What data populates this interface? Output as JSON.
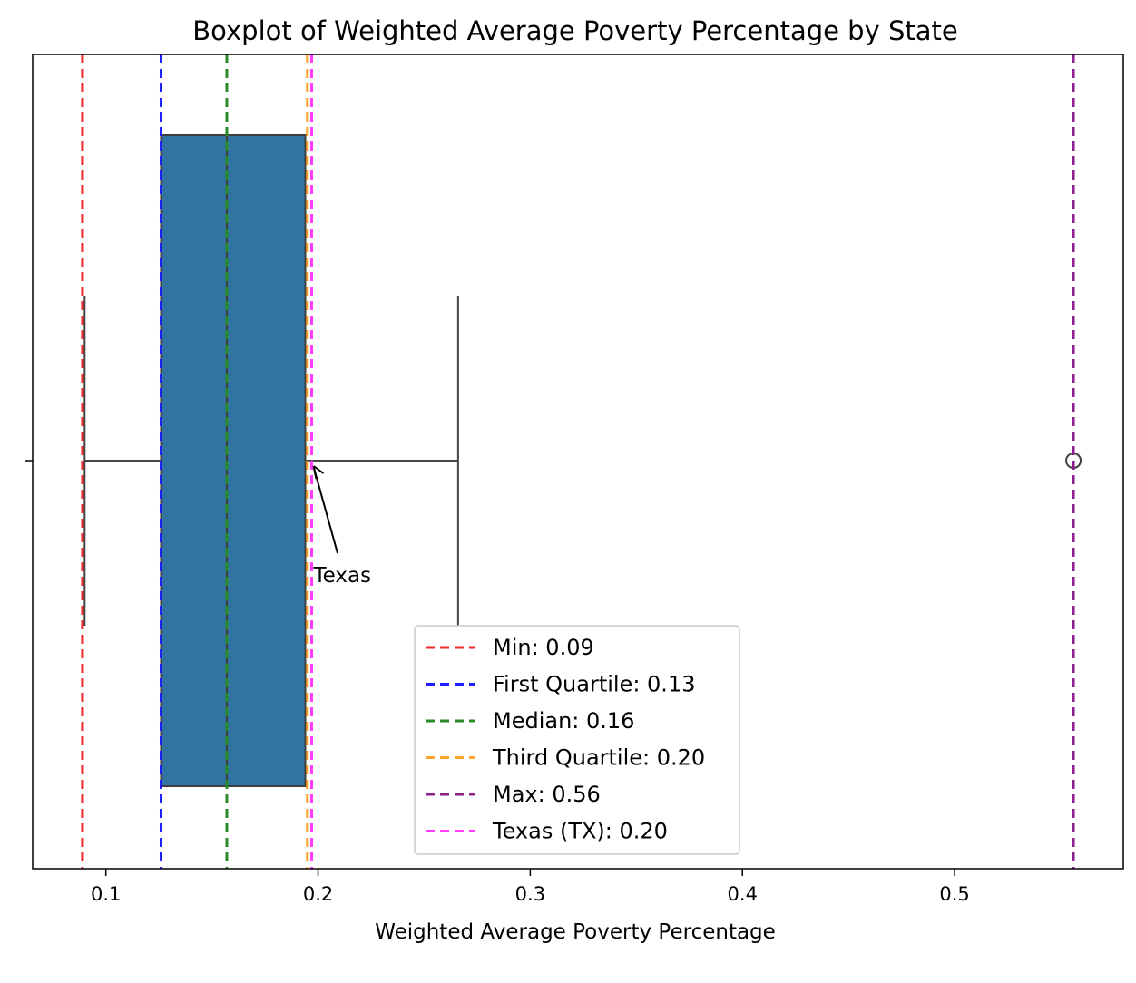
{
  "chart_data": {
    "type": "boxplot",
    "title": "Boxplot of Weighted Average Poverty Percentage by State",
    "xlabel": "Weighted Average Poverty Percentage",
    "ylabel": "",
    "xlim": [
      0.0655,
      0.5795
    ],
    "xticks": [
      0.1,
      0.2,
      0.3,
      0.4,
      0.5
    ],
    "xtick_labels": [
      "0.1",
      "0.2",
      "0.3",
      "0.4",
      "0.5"
    ],
    "grid": false,
    "box": {
      "whisker_low": 0.09,
      "q1": 0.126,
      "median": 0.157,
      "q3": 0.194,
      "whisker_high": 0.266,
      "outliers": [
        0.556
      ],
      "color": "#3274a1"
    },
    "reference_lines": [
      {
        "label": "Min: 0.09",
        "value": 0.089,
        "color": "#ee2a2a"
      },
      {
        "label": "First Quartile: 0.13",
        "value": 0.126,
        "color": "#1f1fff"
      },
      {
        "label": "Median: 0.16",
        "value": 0.157,
        "color": "#2a8a2a"
      },
      {
        "label": "Third Quartile: 0.20",
        "value": 0.195,
        "color": "#ffa52a"
      },
      {
        "label": "Max: 0.56",
        "value": 0.556,
        "color": "#8b1f8b"
      },
      {
        "label": "Texas (TX): 0.20",
        "value": 0.197,
        "color": "#ff3cff"
      }
    ],
    "annotations": [
      {
        "text": "Texas",
        "x": 0.197,
        "y_position": "center"
      }
    ],
    "legend_position": "bottom-center"
  }
}
